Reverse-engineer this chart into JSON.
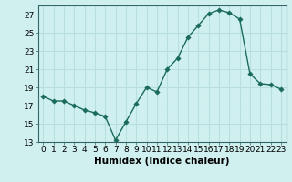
{
  "xlabel": "Humidex (Indice chaleur)",
  "x": [
    0,
    1,
    2,
    3,
    4,
    5,
    6,
    7,
    8,
    9,
    10,
    11,
    12,
    13,
    14,
    15,
    16,
    17,
    18,
    19,
    20,
    21,
    22,
    23
  ],
  "y": [
    18.0,
    17.5,
    17.5,
    17.0,
    16.5,
    16.2,
    15.8,
    13.2,
    15.2,
    17.2,
    19.0,
    18.5,
    21.0,
    22.2,
    24.5,
    25.8,
    27.1,
    27.5,
    27.2,
    26.5,
    20.5,
    19.4,
    19.3,
    18.8
  ],
  "line_color": "#1a6b5a",
  "bg_color": "#d0f0f0",
  "grid_color": "#b8dede",
  "ylim": [
    13,
    28
  ],
  "yticks": [
    13,
    15,
    17,
    19,
    21,
    23,
    25,
    27
  ],
  "xlim": [
    -0.5,
    23.5
  ],
  "xticks": [
    0,
    1,
    2,
    3,
    4,
    5,
    6,
    7,
    8,
    9,
    10,
    11,
    12,
    13,
    14,
    15,
    16,
    17,
    18,
    19,
    20,
    21,
    22,
    23
  ],
  "tick_fontsize": 6.5,
  "xlabel_fontsize": 7.5,
  "marker_size": 2.8,
  "linewidth": 1.0
}
